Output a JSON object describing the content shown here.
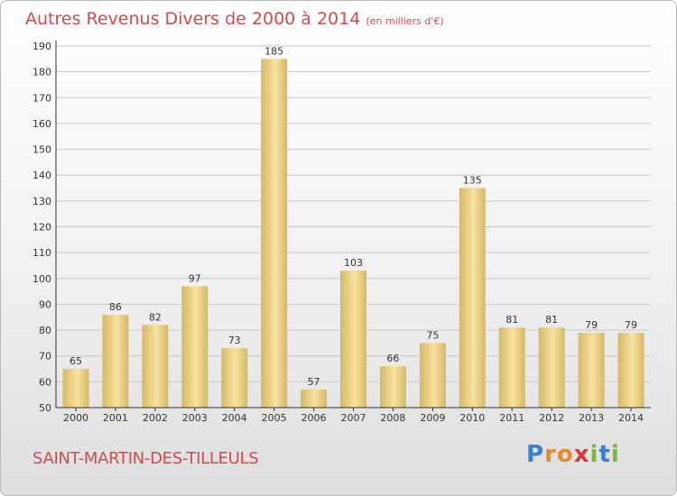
{
  "title": "Autres Revenus Divers de 2000 à 2014",
  "subtitle": "(en milliers d'€)",
  "location": "SAINT-MARTIN-DES-TILLEULS",
  "logo": {
    "letters": [
      "P",
      "r",
      "o",
      "x",
      "i",
      "t",
      "i"
    ],
    "colors": [
      "#3a7fd1",
      "#e8892b",
      "#e8892b",
      "#d9363e",
      "#79b83a",
      "#3a7fd1",
      "#79b83a"
    ]
  },
  "colors": {
    "bar_light": "#f7e2a0",
    "bar_dark": "#d7b766",
    "grid": "#c8c8c8",
    "axis": "#333333",
    "text_accent": "#d14a4e"
  },
  "chart_data": {
    "type": "bar",
    "title": "Autres Revenus Divers de 2000 à 2014",
    "subtitle": "(en milliers d'€)",
    "categories": [
      "2000",
      "2001",
      "2002",
      "2003",
      "2004",
      "2005",
      "2006",
      "2007",
      "2008",
      "2009",
      "2010",
      "2011",
      "2012",
      "2013",
      "2014"
    ],
    "values": [
      65,
      86,
      82,
      97,
      73,
      185,
      57,
      103,
      66,
      75,
      135,
      81,
      81,
      79,
      79
    ],
    "ylim": [
      50,
      190
    ],
    "yticks": [
      50,
      60,
      70,
      80,
      90,
      100,
      110,
      120,
      130,
      140,
      150,
      160,
      170,
      180,
      190
    ],
    "grid": true,
    "xlabel": "",
    "ylabel": ""
  }
}
